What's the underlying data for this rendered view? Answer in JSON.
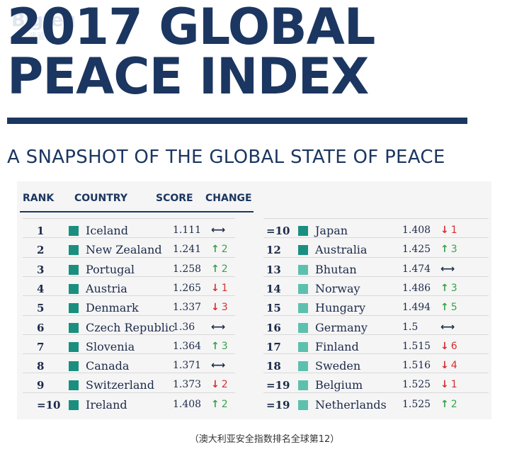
{
  "watermark": {
    "main": "Bigteg",
    "sub": "澳鉴网"
  },
  "title": {
    "line1": "2017 GLOBAL",
    "line2": "PEACE INDEX"
  },
  "subtitle": "A SNAPSHOT OF THE GLOBAL STATE OF PEACE",
  "headers": {
    "rank": "RANK",
    "country": "COUNTRY",
    "score": "SCORE",
    "change": "CHANGE"
  },
  "colors": {
    "navy": "#1b3660",
    "swatch_dark": "#1a8f7f",
    "swatch_light": "#5dc0ad",
    "up": "#39a24a",
    "down": "#d62e2e",
    "same": "#1c2a4a"
  },
  "left_rows": [
    {
      "rank": "1",
      "country": "Iceland",
      "score": "1.111",
      "dir": "same",
      "delta": ""
    },
    {
      "rank": "2",
      "country": "New Zealand",
      "score": "1.241",
      "dir": "up",
      "delta": "2"
    },
    {
      "rank": "3",
      "country": "Portugal",
      "score": "1.258",
      "dir": "up",
      "delta": "2"
    },
    {
      "rank": "4",
      "country": "Austria",
      "score": "1.265",
      "dir": "down",
      "delta": "1"
    },
    {
      "rank": "5",
      "country": "Denmark",
      "score": "1.337",
      "dir": "down",
      "delta": "3"
    },
    {
      "rank": "6",
      "country": "Czech Republic",
      "score": "1.36",
      "dir": "same",
      "delta": ""
    },
    {
      "rank": "7",
      "country": "Slovenia",
      "score": "1.364",
      "dir": "up",
      "delta": "3"
    },
    {
      "rank": "8",
      "country": "Canada",
      "score": "1.371",
      "dir": "same",
      "delta": ""
    },
    {
      "rank": "9",
      "country": "Switzerland",
      "score": "1.373",
      "dir": "down",
      "delta": "2"
    },
    {
      "rank": "=10",
      "country": "Ireland",
      "score": "1.408",
      "dir": "up",
      "delta": "2"
    }
  ],
  "right_rows": [
    {
      "rank": "=10",
      "country": "Japan",
      "score": "1.408",
      "dir": "down",
      "delta": "1"
    },
    {
      "rank": "12",
      "country": "Australia",
      "score": "1.425",
      "dir": "up",
      "delta": "3"
    },
    {
      "rank": "13",
      "country": "Bhutan",
      "score": "1.474",
      "dir": "same",
      "delta": ""
    },
    {
      "rank": "14",
      "country": "Norway",
      "score": "1.486",
      "dir": "up",
      "delta": "3"
    },
    {
      "rank": "15",
      "country": "Hungary",
      "score": "1.494",
      "dir": "up",
      "delta": "5"
    },
    {
      "rank": "16",
      "country": "Germany",
      "score": "1.5",
      "dir": "same",
      "delta": ""
    },
    {
      "rank": "17",
      "country": "Finland",
      "score": "1.515",
      "dir": "down",
      "delta": "6"
    },
    {
      "rank": "18",
      "country": "Sweden",
      "score": "1.516",
      "dir": "down",
      "delta": "4"
    },
    {
      "rank": "=19",
      "country": "Belgium",
      "score": "1.525",
      "dir": "down",
      "delta": "1"
    },
    {
      "rank": "=19",
      "country": "Netherlands",
      "score": "1.525",
      "dir": "up",
      "delta": "2"
    }
  ],
  "caption": "（澳大利亚安全指数排名全球第12）"
}
